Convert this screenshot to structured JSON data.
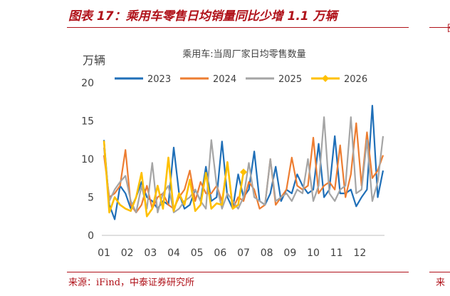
{
  "figure": {
    "title": "图表 17：乘用车零售日均销量同比少增 1.1 万辆",
    "source": "来源：iFind，中泰证券研究所",
    "right_clip": "图",
    "right_source": "来"
  },
  "colors": {
    "brand": "#b0121a",
    "axis": "#bfbfbf",
    "text": "#404040"
  },
  "chart_data": {
    "type": "line",
    "title": "乘用车:当周厂家日均零售数量",
    "unit_label": "万辆",
    "ylim": [
      0,
      20
    ],
    "y_ticks": [
      "0",
      "5",
      "10",
      "15",
      "20"
    ],
    "x_tick_labels": [
      "01",
      "02",
      "03",
      "04",
      "05",
      "06",
      "07",
      "08",
      "09",
      "10",
      "11",
      "12"
    ],
    "x_unit": "week",
    "x_range": [
      1,
      53
    ],
    "grid": false,
    "legend_position": "top",
    "series": [
      {
        "name": "2023",
        "color": "#1f6fb8",
        "marker": false,
        "values": [
          12.5,
          4.0,
          2.1,
          6.5,
          5.5,
          3.5,
          5.0,
          7.0,
          5.0,
          4.5,
          3.5,
          4.5,
          4.0,
          11.5,
          5.5,
          3.5,
          4.0,
          6.0,
          4.5,
          9.0,
          4.5,
          5.0,
          12.3,
          5.0,
          3.5,
          8.0,
          5.0,
          6.0,
          11.0,
          4.5,
          4.0,
          5.5,
          9.0,
          4.5,
          6.0,
          5.5,
          8.0,
          6.5,
          5.5,
          6.0,
          12.0,
          5.0,
          6.0,
          13.0,
          5.5,
          5.5,
          6.0,
          3.8,
          5.0,
          6.0,
          17.0,
          5.0,
          8.5
        ]
      },
      {
        "name": "2024",
        "color": "#ed7d31",
        "marker": false,
        "values": [
          10.5,
          5.0,
          5.5,
          6.5,
          11.2,
          4.0,
          3.0,
          4.0,
          6.5,
          3.5,
          5.0,
          5.5,
          4.0,
          3.5,
          5.0,
          6.0,
          8.5,
          4.5,
          7.0,
          5.5,
          5.5,
          6.5,
          4.5,
          9.5,
          3.5,
          5.0,
          4.5,
          7.0,
          6.0,
          3.5,
          4.0,
          10.0,
          4.0,
          5.0,
          6.0,
          10.2,
          6.5,
          6.0,
          6.5,
          12.8,
          5.5,
          6.5,
          7.0,
          6.0,
          11.8,
          5.0,
          8.0,
          14.7,
          6.5,
          13.5,
          7.5,
          8.5,
          10.5
        ]
      },
      {
        "name": "2025",
        "color": "#a5a5a5",
        "marker": false,
        "values": [
          11.5,
          4.5,
          6.0,
          7.0,
          7.8,
          4.5,
          3.0,
          6.5,
          3.5,
          9.5,
          3.0,
          5.5,
          6.5,
          3.0,
          3.5,
          4.5,
          5.0,
          6.0,
          4.5,
          3.5,
          12.5,
          6.5,
          3.5,
          5.5,
          4.5,
          3.5,
          5.0,
          9.5,
          5.0,
          4.5,
          4.0,
          10.0,
          4.5,
          5.0,
          5.5,
          4.5,
          6.0,
          5.5,
          10.0,
          4.5,
          6.5,
          15.5,
          5.5,
          4.5,
          6.0,
          6.5,
          15.5,
          5.5,
          6.0,
          12.5,
          4.5,
          7.0,
          13.0
        ]
      },
      {
        "name": "2026",
        "color": "#ffc000",
        "marker": true,
        "values": [
          12.4,
          3.0,
          5.0,
          4.0,
          3.5,
          3.2,
          5.0,
          8.2,
          2.5,
          3.5,
          6.5,
          3.5,
          10.2,
          3.2,
          5.5,
          4.0,
          7.3,
          3.2,
          4.0,
          8.2,
          3.5,
          4.2,
          4.0,
          9.6,
          3.5,
          4.0,
          8.3
        ]
      }
    ]
  }
}
